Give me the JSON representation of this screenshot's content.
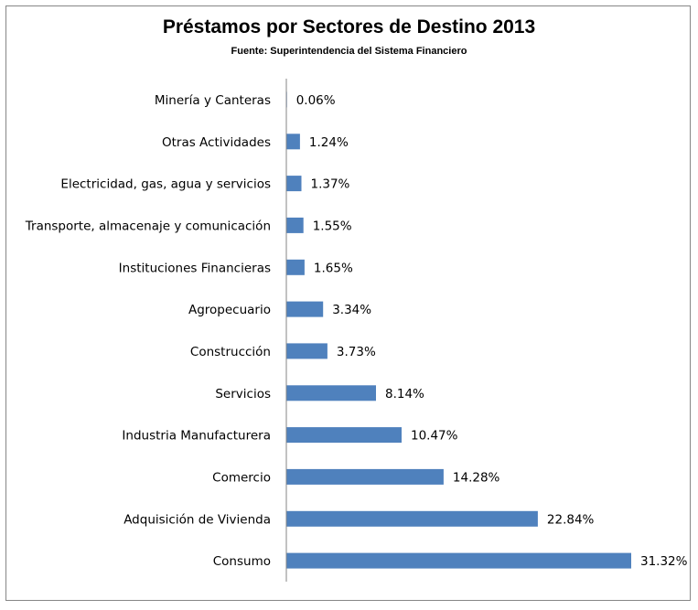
{
  "chart_data": {
    "type": "bar",
    "orientation": "horizontal",
    "title": "Préstamos por Sectores de Destino 2013",
    "subtitle": "Fuente: Superintendencia del Sistema Financiero",
    "categories": [
      "Minería y Canteras",
      "Otras Actividades",
      "Electricidad, gas, agua y servicios",
      "Transporte, almacenaje y comunicación",
      "Instituciones Financieras",
      "Agropecuario",
      "Construcción",
      "Servicios",
      "Industria Manufacturera",
      "Comercio",
      "Adquisición de Vivienda",
      "Consumo"
    ],
    "values": [
      0.06,
      1.24,
      1.37,
      1.55,
      1.65,
      3.34,
      3.73,
      8.14,
      10.47,
      14.28,
      22.84,
      31.32
    ],
    "value_labels": [
      "0.06%",
      "1.24%",
      "1.37%",
      "1.55%",
      "1.65%",
      "3.34%",
      "3.73%",
      "8.14%",
      "10.47%",
      "14.28%",
      "22.84%",
      "31.32%"
    ],
    "xlabel": "",
    "ylabel": "",
    "xlim": [
      0,
      31.32
    ],
    "grid": false,
    "legend": "none",
    "bar_color": "#4f81bd"
  }
}
